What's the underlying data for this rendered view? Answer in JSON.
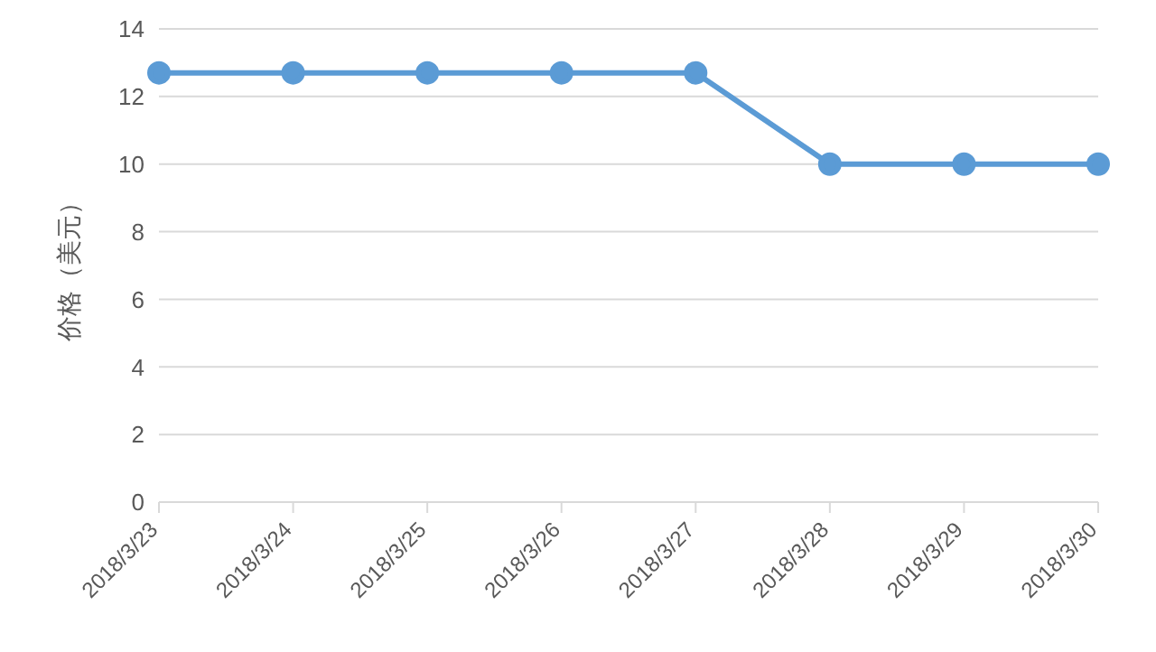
{
  "chart_data": {
    "type": "line",
    "ylabel": "价格（美元）",
    "categories": [
      "2018/3/23",
      "2018/3/24",
      "2018/3/25",
      "2018/3/26",
      "2018/3/27",
      "2018/3/28",
      "2018/3/29",
      "2018/3/30"
    ],
    "series": [
      {
        "color": "#5b9bd5",
        "values": [
          12.7,
          12.7,
          12.7,
          12.7,
          12.7,
          10,
          10,
          10
        ]
      }
    ],
    "ylim": [
      0,
      14
    ],
    "yticks": [
      0,
      2,
      4,
      6,
      8,
      10,
      12,
      14
    ],
    "grid": "y",
    "marker": "circle",
    "line_style": "solid",
    "legend": false
  }
}
